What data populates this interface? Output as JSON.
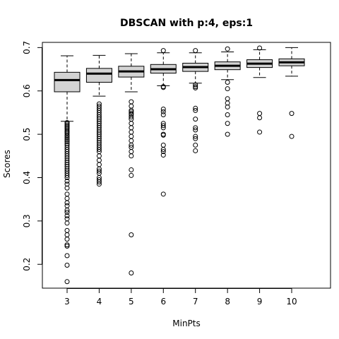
{
  "chart_data": {
    "type": "boxplot",
    "title": "DBSCAN with p:4, eps:1",
    "xlabel": "MinPts",
    "ylabel": "Scores",
    "categories": [
      "3",
      "4",
      "5",
      "6",
      "7",
      "8",
      "9",
      "10"
    ],
    "y_ticks": [
      0.2,
      0.3,
      0.4,
      0.5,
      0.6,
      0.7
    ],
    "ylim": [
      0.145,
      0.712
    ],
    "grid": false,
    "box_fill": "#d3d3d3",
    "boxes": [
      {
        "category": "3",
        "whisker_low": 0.53,
        "q1": 0.598,
        "median": 0.625,
        "q3": 0.643,
        "whisker_high": 0.681,
        "outliers": [
          0.527,
          0.524,
          0.521,
          0.518,
          0.515,
          0.512,
          0.508,
          0.505,
          0.502,
          0.498,
          0.495,
          0.491,
          0.487,
          0.483,
          0.479,
          0.475,
          0.47,
          0.465,
          0.46,
          0.455,
          0.45,
          0.445,
          0.44,
          0.435,
          0.43,
          0.425,
          0.42,
          0.415,
          0.41,
          0.405,
          0.4,
          0.392,
          0.385,
          0.376,
          0.362,
          0.352,
          0.342,
          0.335,
          0.325,
          0.32,
          0.312,
          0.305,
          0.295,
          0.278,
          0.268,
          0.258,
          0.245,
          0.242,
          0.22,
          0.198,
          0.16
        ]
      },
      {
        "category": "4",
        "whisker_low": 0.588,
        "q1": 0.62,
        "median": 0.64,
        "q3": 0.652,
        "whisker_high": 0.682,
        "outliers": [
          0.57,
          0.565,
          0.56,
          0.555,
          0.55,
          0.545,
          0.54,
          0.535,
          0.53,
          0.525,
          0.52,
          0.515,
          0.51,
          0.505,
          0.5,
          0.495,
          0.49,
          0.485,
          0.48,
          0.475,
          0.47,
          0.465,
          0.46,
          0.45,
          0.44,
          0.43,
          0.42,
          0.415,
          0.41,
          0.4,
          0.395,
          0.39,
          0.385
        ]
      },
      {
        "category": "5",
        "whisker_low": 0.598,
        "q1": 0.632,
        "median": 0.645,
        "q3": 0.657,
        "whisker_high": 0.686,
        "outliers": [
          0.575,
          0.565,
          0.555,
          0.552,
          0.548,
          0.545,
          0.54,
          0.535,
          0.525,
          0.515,
          0.505,
          0.495,
          0.485,
          0.475,
          0.47,
          0.46,
          0.45,
          0.418,
          0.405,
          0.268,
          0.18
        ]
      },
      {
        "category": "6",
        "whisker_low": 0.612,
        "q1": 0.641,
        "median": 0.65,
        "q3": 0.661,
        "whisker_high": 0.688,
        "outliers": [
          0.693,
          0.61,
          0.608,
          0.558,
          0.552,
          0.545,
          0.525,
          0.52,
          0.515,
          0.5,
          0.498,
          0.475,
          0.465,
          0.46,
          0.452,
          0.362
        ]
      },
      {
        "category": "7",
        "whisker_low": 0.618,
        "q1": 0.645,
        "median": 0.655,
        "q3": 0.664,
        "whisker_high": 0.688,
        "outliers": [
          0.693,
          0.614,
          0.61,
          0.607,
          0.56,
          0.555,
          0.535,
          0.515,
          0.51,
          0.495,
          0.49,
          0.475,
          0.462
        ]
      },
      {
        "category": "8",
        "whisker_low": 0.626,
        "q1": 0.649,
        "median": 0.658,
        "q3": 0.667,
        "whisker_high": 0.69,
        "outliers": [
          0.697,
          0.62,
          0.605,
          0.582,
          0.572,
          0.563,
          0.545,
          0.525,
          0.5
        ]
      },
      {
        "category": "9",
        "whisker_low": 0.631,
        "q1": 0.654,
        "median": 0.663,
        "q3": 0.672,
        "whisker_high": 0.695,
        "outliers": [
          0.699,
          0.548,
          0.538,
          0.505
        ]
      },
      {
        "category": "10",
        "whisker_low": 0.634,
        "q1": 0.658,
        "median": 0.666,
        "q3": 0.674,
        "whisker_high": 0.7,
        "outliers": [
          0.548,
          0.495
        ]
      }
    ]
  }
}
